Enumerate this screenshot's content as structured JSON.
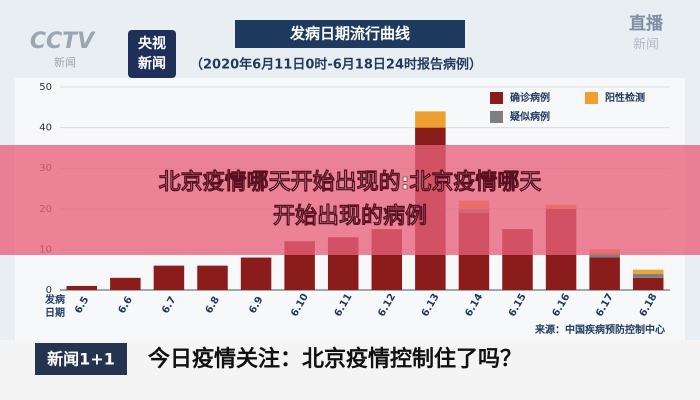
{
  "logos": {
    "channel": "CCTV",
    "channel_sub": "新闻",
    "app_line1": "央视",
    "app_line2": "新闻",
    "live_line1": "直播",
    "live_line2": "新闻"
  },
  "chart_data": {
    "type": "bar",
    "stacked": true,
    "title": "发病日期流行曲线",
    "subtitle": "（2020年6月11日0时-6月18日24时报告病例）",
    "x_label": "发病日期",
    "source": "来源：中国疾病预防控制中心",
    "categories": [
      "6.5",
      "6.6",
      "6.7",
      "6.8",
      "6.9",
      "6.10",
      "6.11",
      "6.12",
      "6.13",
      "6.14",
      "6.15",
      "6.16",
      "6.17",
      "6.18"
    ],
    "series": [
      {
        "name": "确诊病例",
        "color": "#8b1c1c",
        "values": [
          1,
          3,
          6,
          6,
          8,
          12,
          13,
          15,
          40,
          19,
          15,
          20,
          8,
          3
        ]
      },
      {
        "name": "疑似病例",
        "color": "#7f7f7f",
        "values": [
          0,
          0,
          0,
          0,
          0,
          0,
          0,
          0,
          0,
          1,
          0,
          0,
          1,
          1
        ]
      },
      {
        "name": "阳性检测",
        "color": "#f0a030",
        "values": [
          0,
          0,
          0,
          0,
          0,
          0,
          0,
          0,
          4,
          2,
          0,
          1,
          1,
          1
        ]
      }
    ],
    "ylim": [
      0,
      50
    ],
    "yticks": [
      0,
      10,
      20,
      30,
      40,
      50
    ],
    "grid": true,
    "legend": "top-right"
  },
  "banner": {
    "line1": "北京疫情哪天开始出现的:北京疫情哪天",
    "line2": "开始出现的病例"
  },
  "ticker": {
    "program": "新闻1+1",
    "headline": "今日疫情关注：北京疫情控制住了吗？"
  }
}
